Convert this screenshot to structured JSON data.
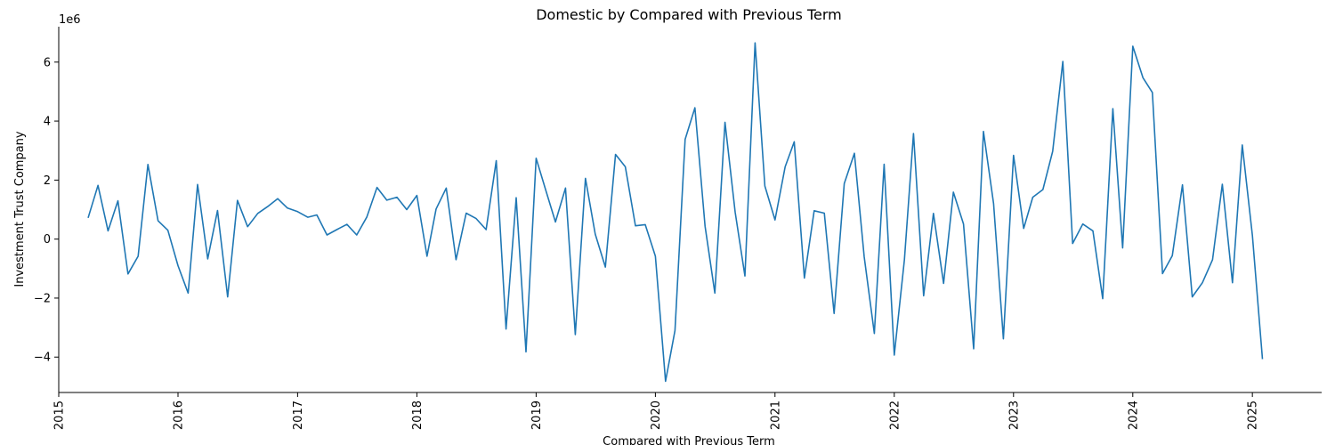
{
  "chart_data": {
    "type": "line",
    "title": "Domestic by Compared with Previous Term",
    "xlabel": "Compared with Previous Term",
    "ylabel": "Investment Trust Company",
    "y_offset_text": "1e6",
    "xlim": [
      "2015-01-01",
      "2025-08-01"
    ],
    "ylim": [
      -5.2,
      7.2
    ],
    "x_ticks": [
      "2015",
      "2016",
      "2017",
      "2018",
      "2019",
      "2020",
      "2021",
      "2022",
      "2023",
      "2024",
      "2025"
    ],
    "y_ticks": [
      "−4",
      "−2",
      "0",
      "2",
      "4",
      "6"
    ],
    "grid": false,
    "line_color": "#1f77b4",
    "series": [
      {
        "x": [
          "2015-04",
          "2015-05",
          "2015-06",
          "2015-07",
          "2015-08",
          "2015-09",
          "2015-10",
          "2015-11",
          "2015-12",
          "2016-01",
          "2016-02",
          "2016-03",
          "2016-04",
          "2016-05",
          "2016-06",
          "2016-07",
          "2016-08",
          "2016-09",
          "2016-10",
          "2016-11",
          "2016-12",
          "2017-01",
          "2017-02",
          "2017-03",
          "2017-04",
          "2017-05",
          "2017-06",
          "2017-07",
          "2017-08",
          "2017-09",
          "2017-10",
          "2017-11",
          "2017-12",
          "2018-01",
          "2018-02",
          "2018-03",
          "2018-04",
          "2018-05",
          "2018-06",
          "2018-07",
          "2018-08",
          "2018-09",
          "2018-10",
          "2018-11",
          "2018-12",
          "2019-01",
          "2019-02",
          "2019-03",
          "2019-04",
          "2019-05",
          "2019-06",
          "2019-07",
          "2019-08",
          "2019-09",
          "2019-10",
          "2019-11",
          "2019-12",
          "2020-01",
          "2020-02",
          "2020-03",
          "2020-04",
          "2020-05",
          "2020-06",
          "2020-07",
          "2020-08",
          "2020-09",
          "2020-10",
          "2020-11",
          "2020-12",
          "2021-01",
          "2021-02",
          "2021-03",
          "2021-04",
          "2021-05",
          "2021-06",
          "2021-07",
          "2021-08",
          "2021-09",
          "2021-10",
          "2021-11",
          "2021-12",
          "2022-01",
          "2022-02",
          "2022-03",
          "2022-04",
          "2022-05",
          "2022-06",
          "2022-07",
          "2022-08",
          "2022-09",
          "2022-10",
          "2022-11",
          "2022-12",
          "2023-01",
          "2023-02",
          "2023-03",
          "2023-04",
          "2023-05",
          "2023-06",
          "2023-07",
          "2023-08",
          "2023-09",
          "2023-10",
          "2023-11",
          "2023-12",
          "2024-01",
          "2024-02",
          "2024-03",
          "2024-04",
          "2024-05",
          "2024-06",
          "2024-07",
          "2024-08",
          "2024-09",
          "2024-10",
          "2024-11",
          "2024-12",
          "2025-01",
          "2025-02"
        ],
        "values": [
          0.72,
          1.82,
          0.28,
          1.3,
          -1.18,
          -0.58,
          2.53,
          0.62,
          0.3,
          -0.9,
          -1.83,
          1.85,
          -0.67,
          0.97,
          -1.96,
          1.31,
          0.42,
          0.87,
          1.1,
          1.37,
          1.05,
          0.93,
          0.74,
          0.82,
          0.14,
          0.32,
          0.5,
          0.14,
          0.75,
          1.75,
          1.32,
          1.42,
          1.0,
          1.48,
          -0.58,
          1.02,
          1.73,
          -0.7,
          0.88,
          0.7,
          0.32,
          2.66,
          -3.05,
          1.4,
          -3.82,
          2.74,
          1.6,
          0.58,
          1.73,
          -3.24,
          2.06,
          0.17,
          -0.95,
          2.87,
          2.45,
          0.45,
          0.49,
          -0.58,
          -4.82,
          -3.1,
          3.38,
          4.45,
          0.44,
          -1.83,
          3.96,
          0.92,
          -1.25,
          6.65,
          1.8,
          0.65,
          2.45,
          3.3,
          -1.32,
          0.96,
          0.88,
          -2.52,
          1.88,
          2.91,
          -0.6,
          -3.2,
          2.54,
          -3.93,
          -0.7,
          3.58,
          -1.92,
          0.87,
          -1.5,
          1.59,
          0.51,
          -3.72,
          3.65,
          1.2,
          -3.38,
          2.84,
          0.36,
          1.42,
          1.68,
          2.98,
          6.02,
          -0.15,
          0.51,
          0.28,
          -2.02,
          4.42,
          -0.3,
          6.54,
          5.47,
          4.97,
          -1.17,
          -0.56,
          1.84,
          -1.96,
          -1.48,
          -0.7,
          1.86,
          -1.48,
          3.19,
          0.12,
          -4.07
        ]
      }
    ]
  }
}
